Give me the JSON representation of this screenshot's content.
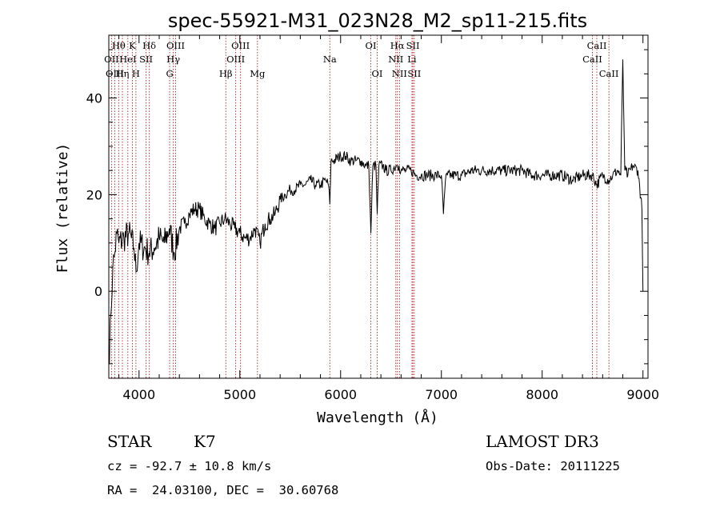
{
  "chart_data": {
    "type": "line",
    "title": "spec-55921-M31_023N28_M2_sp11-215.fits",
    "xlabel": "Wavelength (Å)",
    "ylabel": "Flux (relative)",
    "xlim": [
      3700,
      9050
    ],
    "ylim": [
      -18,
      53
    ],
    "xticks": [
      4000,
      5000,
      6000,
      7000,
      8000,
      9000
    ],
    "xtick_labels": [
      "4000",
      "5000",
      "6000",
      "7000",
      "8000",
      "9000"
    ],
    "yticks": [
      0,
      20,
      40
    ],
    "ytick_labels": [
      "0",
      "20",
      "40"
    ],
    "series": [
      {
        "name": "spectrum",
        "x": [
          3700,
          3720,
          3740,
          3760,
          3780,
          3800,
          3850,
          3900,
          3950,
          3970,
          4000,
          4050,
          4100,
          4150,
          4200,
          4250,
          4300,
          4350,
          4400,
          4450,
          4500,
          4550,
          4600,
          4650,
          4700,
          4750,
          4800,
          4850,
          4900,
          4950,
          5000,
          5050,
          5100,
          5150,
          5200,
          5250,
          5300,
          5350,
          5400,
          5450,
          5500,
          5550,
          5600,
          5650,
          5700,
          5750,
          5800,
          5850,
          5880,
          5893,
          5905,
          5930,
          6000,
          6050,
          6100,
          6150,
          6200,
          6250,
          6280,
          6300,
          6320,
          6350,
          6363,
          6380,
          6420,
          6450,
          6500,
          6550,
          6563,
          6580,
          6600,
          6650,
          6700,
          6750,
          6800,
          6850,
          6900,
          6950,
          7000,
          7020,
          7040,
          7060,
          7100,
          7150,
          7200,
          7300,
          7400,
          7500,
          7600,
          7700,
          7800,
          7900,
          8000,
          8100,
          8200,
          8300,
          8400,
          8500,
          8542,
          8600,
          8662,
          8700,
          8750,
          8780,
          8800,
          8820,
          8850,
          8900,
          8950,
          8990,
          9000
        ],
        "values": [
          -15,
          -5,
          5,
          8,
          12,
          10,
          11,
          12,
          9,
          4,
          10,
          9,
          8,
          9,
          11,
          10,
          13,
          8,
          13,
          14,
          16,
          17,
          17,
          15,
          14,
          13,
          14,
          15,
          14,
          13,
          12,
          11,
          11,
          13,
          10,
          14,
          15,
          16,
          19,
          20,
          21,
          21,
          22,
          22,
          23,
          22,
          22,
          23,
          22,
          18,
          27,
          27,
          28,
          28,
          27,
          27,
          27,
          26,
          26,
          12,
          26,
          26,
          16,
          26,
          26,
          25,
          25,
          26,
          26,
          26,
          25,
          25,
          25,
          24,
          24,
          24,
          24,
          24,
          24,
          16,
          23,
          24,
          24,
          24,
          24,
          25,
          25,
          25,
          25,
          25,
          25,
          24,
          24,
          24,
          24,
          23,
          24,
          24,
          22,
          24,
          23,
          24,
          25,
          24,
          48,
          25,
          24,
          26,
          25,
          17,
          0
        ]
      }
    ],
    "lines": [
      {
        "label": "Hθ",
        "wave": 3798,
        "row": 1
      },
      {
        "label": "OII",
        "wave": 3727,
        "row": 2
      },
      {
        "label": "OIII",
        "wave": 3760,
        "row": 3
      },
      {
        "label": "K",
        "wave": 3934,
        "row": 1
      },
      {
        "label": "HeI",
        "wave": 3889,
        "row": 2
      },
      {
        "label": "Hη",
        "wave": 3835,
        "row": 3
      },
      {
        "label": "SII",
        "wave": 4070,
        "row": 2
      },
      {
        "label": "H",
        "wave": 3969,
        "row": 3
      },
      {
        "label": "Hδ",
        "wave": 4102,
        "row": 1
      },
      {
        "label": "OIII",
        "wave": 4363,
        "row": 1
      },
      {
        "label": "Hγ",
        "wave": 4340,
        "row": 2
      },
      {
        "label": "G",
        "wave": 4304,
        "row": 3
      },
      {
        "label": "Hβ",
        "wave": 4861,
        "row": 3
      },
      {
        "label": "OIII",
        "wave": 5007,
        "row": 1
      },
      {
        "label": "OIII",
        "wave": 4959,
        "row": 2
      },
      {
        "label": "Mg",
        "wave": 5175,
        "row": 3
      },
      {
        "label": "Na",
        "wave": 5893,
        "row": 2
      },
      {
        "label": "OI",
        "wave": 6300,
        "row": 1
      },
      {
        "label": "OI",
        "wave": 6363,
        "row": 3
      },
      {
        "label": "Hα",
        "wave": 6563,
        "row": 1
      },
      {
        "label": "NII",
        "wave": 6548,
        "row": 2
      },
      {
        "label": "NII",
        "wave": 6584,
        "row": 3
      },
      {
        "label": "SII",
        "wave": 6717,
        "row": 1
      },
      {
        "label": "Li",
        "wave": 6708,
        "row": 2
      },
      {
        "label": "SII",
        "wave": 6731,
        "row": 3
      },
      {
        "label": "CaII",
        "wave": 8542,
        "row": 1
      },
      {
        "label": "CaII",
        "wave": 8498,
        "row": 2
      },
      {
        "label": "CaII",
        "wave": 8662,
        "row": 3
      }
    ]
  },
  "info": {
    "class_label": "STAR",
    "subclass": "K7",
    "survey": "LAMOST DR3",
    "cz": "cz = -92.7 ± 10.8 km/s",
    "obs_date": "Obs-Date: 20111225",
    "coords": "RA =  24.03100, DEC =  30.60768"
  }
}
